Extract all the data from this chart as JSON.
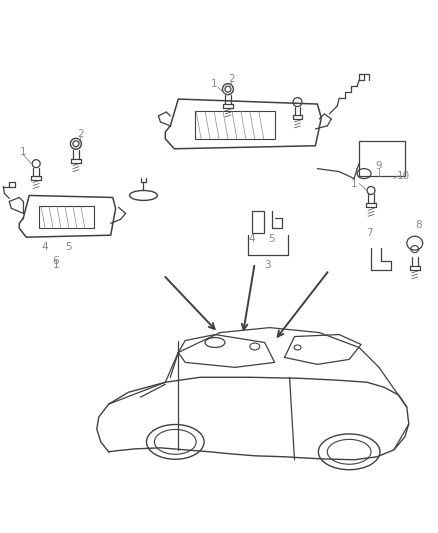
{
  "bg_color": "#ffffff",
  "line_color": "#404040",
  "label_color": "#888888",
  "figsize": [
    4.38,
    5.33
  ],
  "dpi": 100
}
